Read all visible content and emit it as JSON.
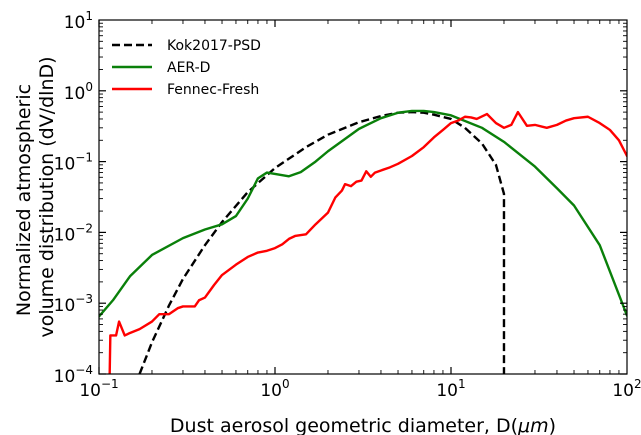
{
  "chart_data": {
    "type": "line",
    "title": "",
    "xlabel": "Dust aerosol geometric diameter, D(μm)",
    "ylabel_lines": [
      "Normalized atmospheric",
      "volume distribution (dV/dlnD)"
    ],
    "x_scale": "log",
    "y_scale": "log",
    "xlim": [
      0.1,
      100
    ],
    "ylim": [
      0.0001,
      10
    ],
    "x_ticks": [
      {
        "base": "10",
        "exp": "−1",
        "value": 0.1
      },
      {
        "base": "10",
        "exp": "0",
        "value": 1
      },
      {
        "base": "10",
        "exp": "1",
        "value": 10
      },
      {
        "base": "10",
        "exp": "2",
        "value": 100
      }
    ],
    "y_ticks": [
      {
        "base": "10",
        "exp": "−4",
        "value": 0.0001
      },
      {
        "base": "10",
        "exp": "−3",
        "value": 0.001
      },
      {
        "base": "10",
        "exp": "−2",
        "value": 0.01
      },
      {
        "base": "10",
        "exp": "−1",
        "value": 0.1
      },
      {
        "base": "10",
        "exp": "0",
        "value": 1
      },
      {
        "base": "10",
        "exp": "1",
        "value": 10
      }
    ],
    "grid": false,
    "legend_position": "top-left",
    "series": [
      {
        "name": "Kok2017-PSD",
        "color": "#000000",
        "dash": true,
        "points": [
          [
            0.17,
            0.0001
          ],
          [
            0.2,
            0.00028
          ],
          [
            0.25,
            0.00093
          ],
          [
            0.3,
            0.0022
          ],
          [
            0.4,
            0.0066
          ],
          [
            0.5,
            0.014
          ],
          [
            0.7,
            0.037
          ],
          [
            1.0,
            0.081
          ],
          [
            1.5,
            0.16
          ],
          [
            2.0,
            0.24
          ],
          [
            3.0,
            0.36
          ],
          [
            4.0,
            0.44
          ],
          [
            5.0,
            0.49
          ],
          [
            6.0,
            0.5
          ],
          [
            7.0,
            0.49
          ],
          [
            8.0,
            0.46
          ],
          [
            10.0,
            0.4
          ],
          [
            12.0,
            0.3
          ],
          [
            15.0,
            0.18
          ],
          [
            18.0,
            0.09
          ],
          [
            20.0,
            0.035
          ],
          [
            20.0,
            0.0001
          ]
        ]
      },
      {
        "name": "AER-D",
        "color": "#0a800a",
        "dash": false,
        "points": [
          [
            0.1,
            0.00065
          ],
          [
            0.12,
            0.0011
          ],
          [
            0.15,
            0.0024
          ],
          [
            0.2,
            0.0048
          ],
          [
            0.3,
            0.0083
          ],
          [
            0.4,
            0.011
          ],
          [
            0.5,
            0.013
          ],
          [
            0.6,
            0.017
          ],
          [
            0.7,
            0.03
          ],
          [
            0.8,
            0.058
          ],
          [
            0.9,
            0.07
          ],
          [
            1.0,
            0.067
          ],
          [
            1.2,
            0.062
          ],
          [
            1.4,
            0.071
          ],
          [
            1.7,
            0.1
          ],
          [
            2.0,
            0.14
          ],
          [
            3.0,
            0.29
          ],
          [
            4.0,
            0.41
          ],
          [
            5.0,
            0.49
          ],
          [
            6.0,
            0.52
          ],
          [
            7.0,
            0.52
          ],
          [
            8.0,
            0.5
          ],
          [
            10.0,
            0.45
          ],
          [
            15.0,
            0.3
          ],
          [
            20.0,
            0.19
          ],
          [
            30.0,
            0.085
          ],
          [
            40.0,
            0.042
          ],
          [
            50.0,
            0.024
          ],
          [
            70.0,
            0.0066
          ],
          [
            100.0,
            0.00067
          ]
        ]
      },
      {
        "name": "Fennec-Fresh",
        "color": "#ff0000",
        "dash": false,
        "points": [
          [
            0.115,
            0.0001
          ],
          [
            0.116,
            0.00035
          ],
          [
            0.125,
            0.00035
          ],
          [
            0.13,
            0.00055
          ],
          [
            0.14,
            0.00035
          ],
          [
            0.15,
            0.00038
          ],
          [
            0.17,
            0.00043
          ],
          [
            0.2,
            0.00055
          ],
          [
            0.22,
            0.0007
          ],
          [
            0.25,
            0.0007
          ],
          [
            0.28,
            0.00085
          ],
          [
            0.3,
            0.0009
          ],
          [
            0.35,
            0.0009
          ],
          [
            0.37,
            0.0011
          ],
          [
            0.4,
            0.0012
          ],
          [
            0.45,
            0.0018
          ],
          [
            0.5,
            0.0025
          ],
          [
            0.6,
            0.0035
          ],
          [
            0.7,
            0.0045
          ],
          [
            0.8,
            0.0052
          ],
          [
            0.9,
            0.0055
          ],
          [
            1.0,
            0.006
          ],
          [
            1.1,
            0.0068
          ],
          [
            1.2,
            0.0081
          ],
          [
            1.3,
            0.0089
          ],
          [
            1.5,
            0.0094
          ],
          [
            1.7,
            0.013
          ],
          [
            2.0,
            0.019
          ],
          [
            2.2,
            0.031
          ],
          [
            2.4,
            0.039
          ],
          [
            2.5,
            0.048
          ],
          [
            2.7,
            0.045
          ],
          [
            2.9,
            0.052
          ],
          [
            3.1,
            0.054
          ],
          [
            3.3,
            0.073
          ],
          [
            3.5,
            0.061
          ],
          [
            3.7,
            0.07
          ],
          [
            4.0,
            0.075
          ],
          [
            4.5,
            0.083
          ],
          [
            5.0,
            0.093
          ],
          [
            6.0,
            0.12
          ],
          [
            7.0,
            0.16
          ],
          [
            8.0,
            0.22
          ],
          [
            9.0,
            0.28
          ],
          [
            10.0,
            0.35
          ],
          [
            11.0,
            0.38
          ],
          [
            12.0,
            0.43
          ],
          [
            13.0,
            0.42
          ],
          [
            14.0,
            0.4
          ],
          [
            16.0,
            0.47
          ],
          [
            18.0,
            0.35
          ],
          [
            20.0,
            0.3
          ],
          [
            22.0,
            0.33
          ],
          [
            24.0,
            0.5
          ],
          [
            27.0,
            0.32
          ],
          [
            30.0,
            0.33
          ],
          [
            35.0,
            0.3
          ],
          [
            40.0,
            0.33
          ],
          [
            45.0,
            0.38
          ],
          [
            50.0,
            0.41
          ],
          [
            60.0,
            0.43
          ],
          [
            70.0,
            0.35
          ],
          [
            80.0,
            0.28
          ],
          [
            90.0,
            0.2
          ],
          [
            100.0,
            0.12
          ]
        ]
      }
    ]
  }
}
